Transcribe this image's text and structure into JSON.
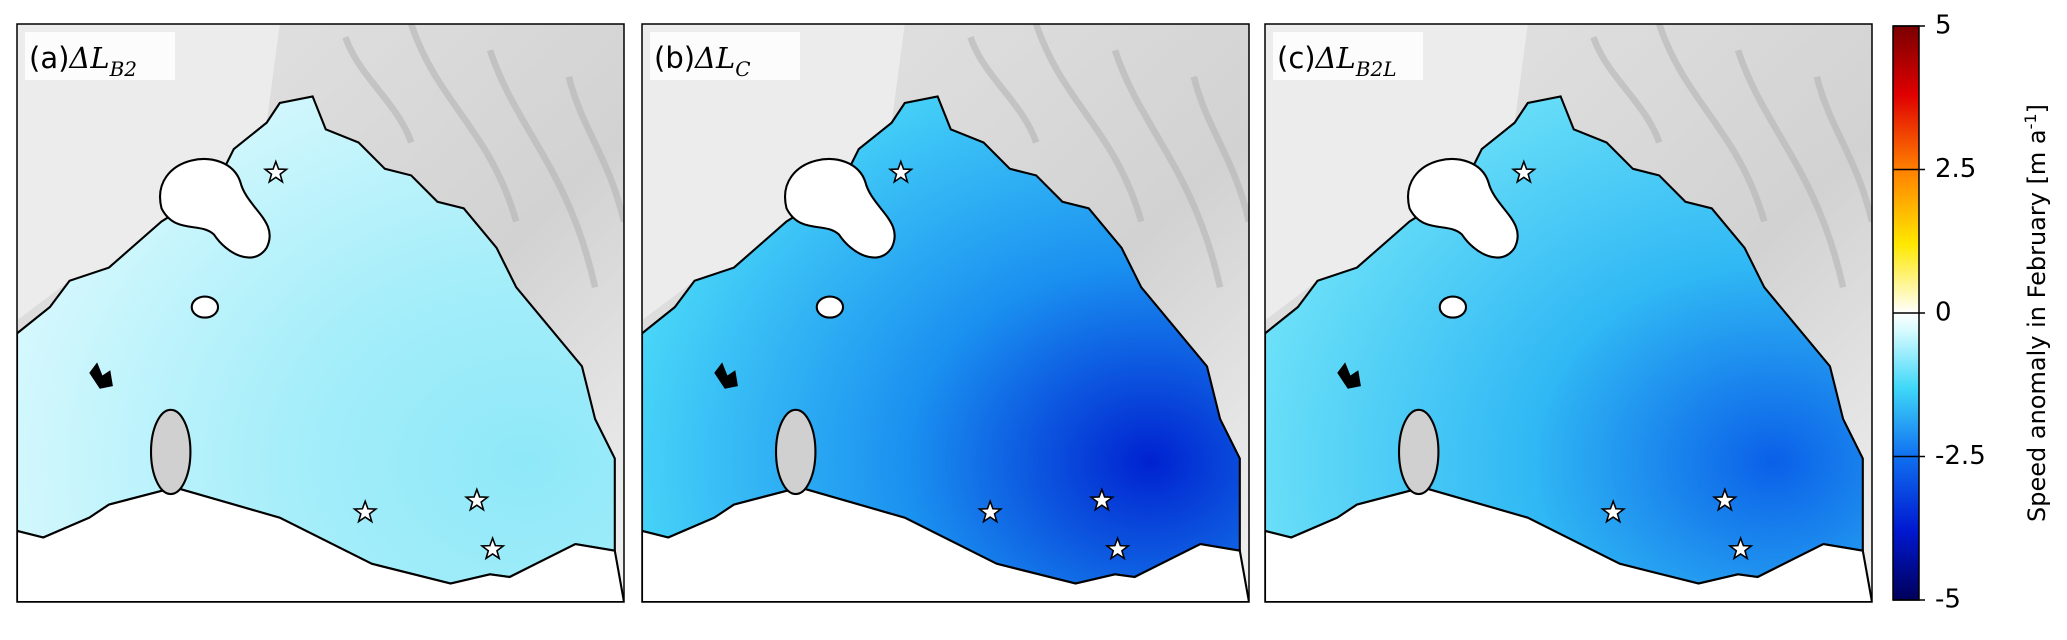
{
  "panels": [
    {
      "label": "(a)",
      "symbol": "ΔL",
      "subscript": "B2"
    },
    {
      "label": "(b)",
      "symbol": "ΔL",
      "subscript": "C"
    },
    {
      "label": "(c)",
      "symbol": "ΔL",
      "subscript": "B2L"
    }
  ],
  "colorbar": {
    "label": "Speed anomaly in February [m a",
    "label_superscript": "-1",
    "label_end": "]",
    "lim": [
      -5,
      5
    ],
    "ticks": [
      5,
      2.5,
      0,
      -2.5,
      -5
    ]
  }
}
